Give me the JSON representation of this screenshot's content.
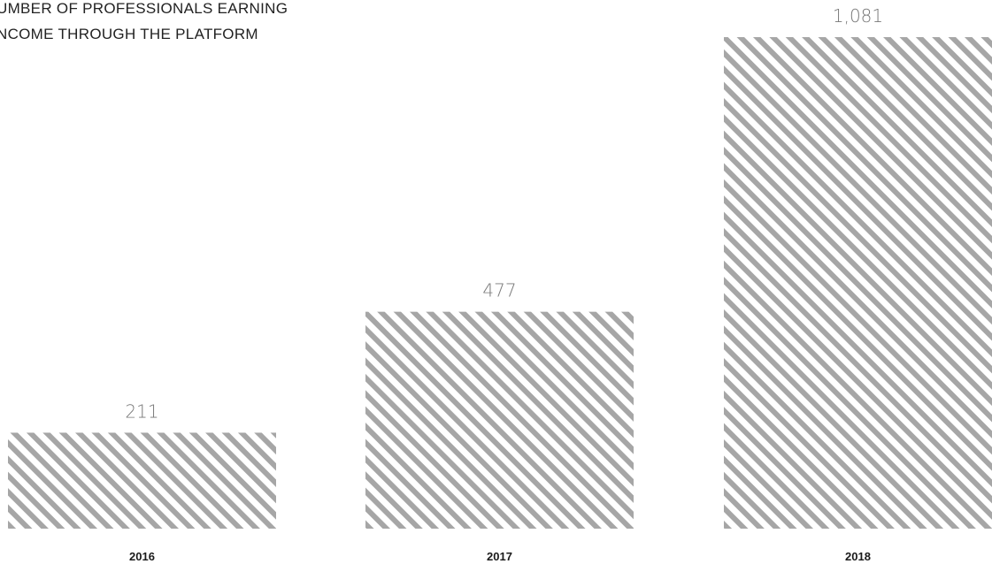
{
  "chart_data": {
    "type": "bar",
    "title": "UMBER OF PROFESSIONALS EARNING NCOME THROUGH THE PLATFORM",
    "title_lines": [
      "UMBER OF PROFESSIONALS EARNING",
      "NCOME THROUGH THE PLATFORM"
    ],
    "categories": [
      "2016",
      "2017",
      "2018"
    ],
    "values": [
      211,
      477,
      1081
    ],
    "value_labels": [
      "211",
      "477",
      "1,081"
    ],
    "xlabel": "",
    "ylabel": "",
    "ylim": [
      0,
      1081
    ],
    "grid": false,
    "legend": "none",
    "bar_style": "diagonal-hatch"
  },
  "colors": {
    "hatch": "#a6a6a6",
    "background": "#ffffff",
    "value_label": "#777777",
    "category_label": "#1a1a1a",
    "title": "#222222"
  }
}
